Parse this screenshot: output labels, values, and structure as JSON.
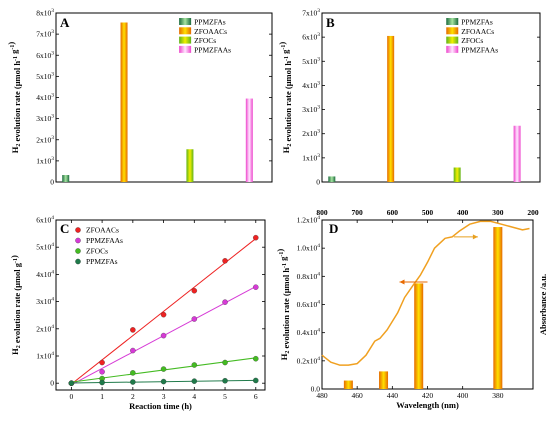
{
  "chart_data": [
    {
      "panel_label": "A",
      "type": "bar",
      "ylabel": "H2 evolution rate (μmol h-1 g-1)",
      "ylim": [
        0,
        8000
      ],
      "yticks": [
        0,
        1000,
        2000,
        3000,
        4000,
        5000,
        6000,
        7000,
        8000
      ],
      "legend_position": "top-right",
      "series": [
        {
          "name": "PPMZFAs",
          "value": 330,
          "color": "#2e8b57"
        },
        {
          "name": "ZFOAACs",
          "value": 7550,
          "color": "#ff7f00"
        },
        {
          "name": "ZFOCs",
          "value": 1550,
          "color": "#7ccd2a"
        },
        {
          "name": "PPMZFAAs",
          "value": 3950,
          "color": "#ff66dd"
        }
      ]
    },
    {
      "panel_label": "B",
      "type": "bar",
      "ylabel": "H2 evolution rate (μmol h-1 g-1)",
      "ylim": [
        0,
        7000
      ],
      "yticks": [
        0,
        1000,
        2000,
        3000,
        4000,
        5000,
        6000,
        7000
      ],
      "legend_position": "top-right",
      "series": [
        {
          "name": "PPMZFAs",
          "value": 230,
          "color": "#2e8b57"
        },
        {
          "name": "ZFOAACs",
          "value": 6050,
          "color": "#ff7f00"
        },
        {
          "name": "ZFOCs",
          "value": 600,
          "color": "#7ccd2a"
        },
        {
          "name": "PPMZFAAs",
          "value": 2330,
          "color": "#ff66dd"
        }
      ]
    },
    {
      "panel_label": "C",
      "type": "scatter",
      "xlabel": "Reaction time (h)",
      "ylabel": "H2 evolution rate (μmol g-1)",
      "xlim": [
        -0.5,
        6.3
      ],
      "ylim": [
        -2500,
        60000
      ],
      "xticks": [
        0,
        1,
        2,
        3,
        4,
        5,
        6
      ],
      "yticks": [
        0,
        10000,
        20000,
        30000,
        40000,
        50000,
        60000
      ],
      "legend_position": "top-left",
      "x": [
        0,
        1,
        2,
        3,
        4,
        5,
        6
      ],
      "series": [
        {
          "name": "ZFOAACs",
          "color": "#ee2222",
          "values": [
            0,
            7600,
            19600,
            25200,
            34000,
            45000,
            53500
          ]
        },
        {
          "name": "PPMZFAAs",
          "color": "#d63ad6",
          "values": [
            0,
            4200,
            12000,
            17500,
            23600,
            29800,
            35300
          ]
        },
        {
          "name": "ZFOCs",
          "color": "#44bb22",
          "values": [
            0,
            1700,
            3800,
            5200,
            6700,
            7600,
            9000
          ]
        },
        {
          "name": "PPMZFAs",
          "color": "#1f7a4a",
          "values": [
            0,
            250,
            450,
            600,
            750,
            900,
            1000
          ]
        }
      ]
    },
    {
      "panel_label": "D",
      "type": "bar",
      "xlabel": "Wavelength (nm)",
      "ylabel": "H2 evolution rate (μmol h-1 g-1)",
      "y2label": "Absorbance /a.u.",
      "xlim": [
        480,
        360
      ],
      "ylim": [
        0,
        12000
      ],
      "xticks": [
        480,
        460,
        440,
        420,
        400,
        380
      ],
      "yticks": [
        0,
        2000,
        4000,
        6000,
        8000,
        10000,
        12000
      ],
      "top_xlim": [
        800,
        200
      ],
      "top_xticks": [
        800,
        700,
        600,
        500,
        400,
        300,
        200
      ],
      "bars": [
        {
          "wavelength": 465,
          "value": 600
        },
        {
          "wavelength": 445,
          "value": 1250
        },
        {
          "wavelength": 425,
          "value": 7500
        },
        {
          "wavelength": 380,
          "value": 11500
        }
      ],
      "absorbance_curve": [
        [
          480,
          2400
        ],
        [
          475,
          1900
        ],
        [
          470,
          1700
        ],
        [
          465,
          1700
        ],
        [
          460,
          1800
        ],
        [
          455,
          2400
        ],
        [
          450,
          3400
        ],
        [
          447,
          3600
        ],
        [
          443,
          4200
        ],
        [
          437,
          5400
        ],
        [
          433,
          6500
        ],
        [
          428,
          7400
        ],
        [
          424,
          8100
        ],
        [
          420,
          9000
        ],
        [
          416,
          10000
        ],
        [
          410,
          10700
        ],
        [
          406,
          10800
        ],
        [
          402,
          11200
        ],
        [
          396,
          11700
        ],
        [
          390,
          11900
        ],
        [
          384,
          11900
        ],
        [
          378,
          11700
        ],
        [
          372,
          11500
        ],
        [
          366,
          11300
        ],
        [
          362,
          11400
        ]
      ]
    }
  ]
}
